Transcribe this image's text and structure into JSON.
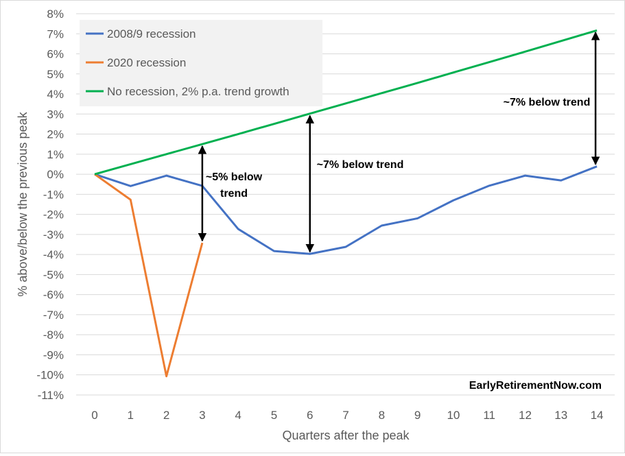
{
  "chart_data": {
    "type": "line",
    "xlabel": "Quarters after the peak",
    "ylabel": "% above/below the previous peak",
    "x": [
      0,
      1,
      2,
      3,
      4,
      5,
      6,
      7,
      8,
      9,
      10,
      11,
      12,
      13,
      14
    ],
    "ylim": [
      -11,
      8
    ],
    "yticks": [
      "8%",
      "7%",
      "6%",
      "5%",
      "4%",
      "3%",
      "2%",
      "1%",
      "0%",
      "-1%",
      "-2%",
      "-3%",
      "-4%",
      "-5%",
      "-6%",
      "-7%",
      "-8%",
      "-9%",
      "-10%",
      "-11%"
    ],
    "grid": true,
    "legend": "top-left",
    "series": [
      {
        "name": "2008/9 recession",
        "color": "#4472c4",
        "values": [
          0,
          -0.59,
          -0.07,
          -0.58,
          -2.73,
          -3.83,
          -3.97,
          -3.62,
          -2.56,
          -2.2,
          -1.3,
          -0.57,
          -0.07,
          -0.31,
          0.39
        ]
      },
      {
        "name": "2020 recession",
        "color": "#ed7d31",
        "values": [
          0,
          -1.27,
          -10.07,
          -3.42,
          null,
          null,
          null,
          null,
          null,
          null,
          null,
          null,
          null,
          null,
          null
        ]
      },
      {
        "name": "No recession, 2% p.a. trend growth",
        "color": "#00b050",
        "values": [
          0,
          0.5,
          1.0,
          1.5,
          2.0,
          2.51,
          3.02,
          3.53,
          4.04,
          4.55,
          5.07,
          5.59,
          6.11,
          6.64,
          7.17
        ]
      }
    ],
    "annotations": [
      {
        "text": [
          "~5% below",
          "trend"
        ],
        "x": 3,
        "from": 1.5,
        "to": -3.42
      },
      {
        "text": [
          "~7% below trend"
        ],
        "x": 6,
        "from": 3.02,
        "to": -3.97
      },
      {
        "text": [
          "~7% below trend"
        ],
        "x": 14,
        "from": 7.17,
        "to": 0.39
      }
    ],
    "watermark": "EarlyRetirementNow.com"
  }
}
